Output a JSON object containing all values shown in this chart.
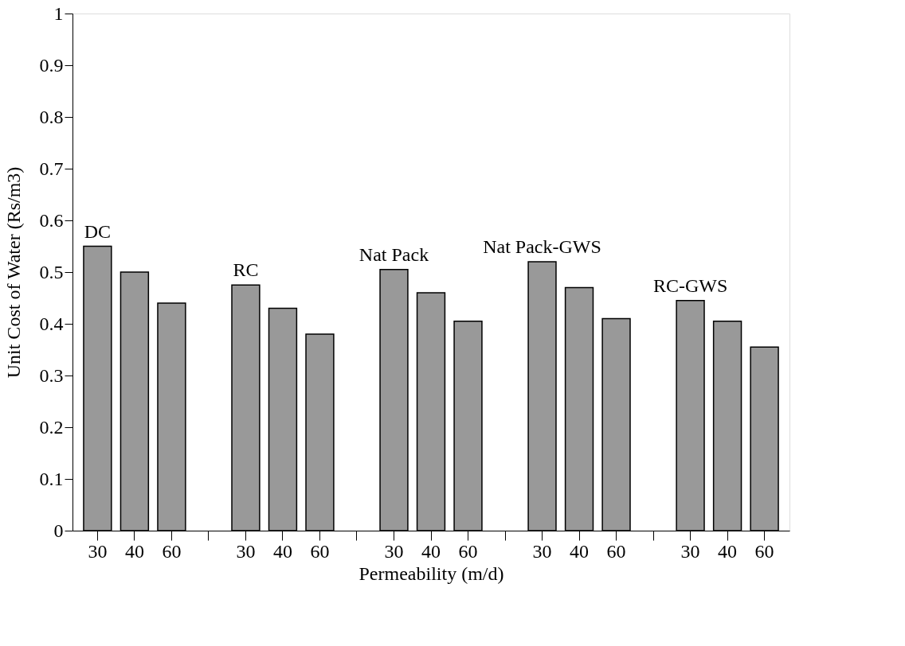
{
  "chart_data": {
    "type": "bar",
    "xlabel": "Permeability (m/d)",
    "ylabel": "Unit Cost of Water (Rs/m3)",
    "categories": [
      "30",
      "40",
      "60",
      "30",
      "40",
      "60",
      "30",
      "40",
      "60",
      "30",
      "40",
      "60",
      "30",
      "40",
      "60"
    ],
    "values": [
      0.55,
      0.5,
      0.44,
      0.475,
      0.43,
      0.38,
      0.505,
      0.46,
      0.405,
      0.52,
      0.47,
      0.41,
      0.445,
      0.405,
      0.355
    ],
    "color": "#999999",
    "annotations": [
      "DC",
      "RC",
      "Nat Pack",
      "Nat Pack-GWS",
      "RC-GWS"
    ],
    "ylim": [
      0,
      1
    ],
    "yticks": [
      0,
      0.1,
      0.2,
      0.3,
      0.4,
      0.5,
      0.6,
      0.7,
      0.8,
      0.9,
      1
    ],
    "grid": false
  }
}
